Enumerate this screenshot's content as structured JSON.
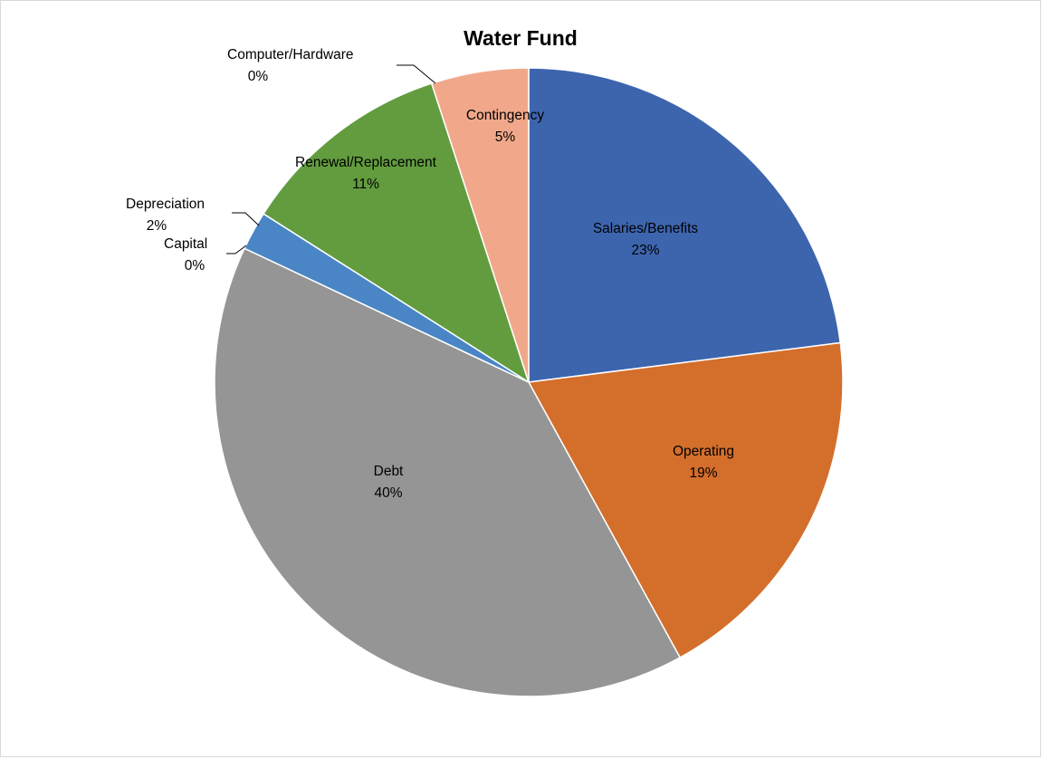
{
  "chart_data": {
    "type": "pie",
    "title": "Water Fund",
    "slices": [
      {
        "label": "Salaries/Benefits",
        "value": 23,
        "display": "23%",
        "color": "#3d65ae"
      },
      {
        "label": "Operating",
        "value": 19,
        "display": "19%",
        "color": "#d46e2b"
      },
      {
        "label": "Debt",
        "value": 40,
        "display": "40%",
        "color": "#959595"
      },
      {
        "label": "Capital",
        "value": 0,
        "display": "0%",
        "color": "#f2bd1f"
      },
      {
        "label": "Depreciation",
        "value": 2,
        "display": "2%",
        "color": "#4a86c6"
      },
      {
        "label": "Renewal/Replacement",
        "value": 11,
        "display": "11%",
        "color": "#629c3f"
      },
      {
        "label": "Computer/Hardware",
        "value": 0,
        "display": "0%",
        "color": "#2a467c"
      },
      {
        "label": "Contingency",
        "value": 5,
        "display": "5%",
        "color": "#f1a88a"
      }
    ],
    "start_angle": "12 o'clock",
    "direction": "clockwise",
    "legend": "none",
    "data_labels": "category name and percentage"
  }
}
